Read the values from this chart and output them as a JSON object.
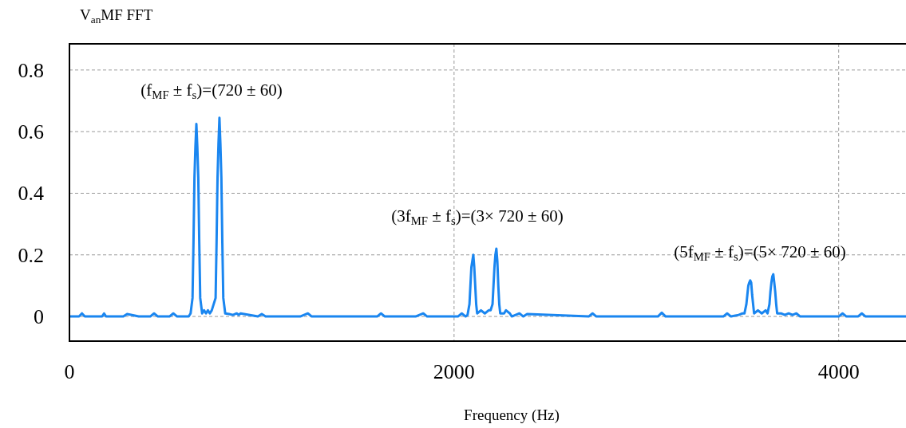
{
  "chart_data": {
    "type": "line",
    "title": "V$_{an}$MF FFT",
    "xlabel": "Frequency (Hz)",
    "annotations": [
      "(f$_{MF}$ ± f$_{s}$)=(720 ± 60)",
      "(3f$_{MF}$ ± f$_{s}$)=(3× 720 ± 60)",
      "(5f$_{MF}$ ± f$_{s}$)=(5× 720 ± 60)"
    ],
    "x": [
      0,
      50,
      65,
      80,
      170,
      180,
      190,
      280,
      300,
      360,
      420,
      440,
      460,
      520,
      540,
      560,
      620,
      630,
      640,
      645,
      650,
      655,
      660,
      665,
      670,
      675,
      680,
      690,
      700,
      710,
      720,
      730,
      740,
      760,
      765,
      770,
      775,
      780,
      785,
      790,
      795,
      800,
      810,
      830,
      850,
      870,
      880,
      890,
      980,
      1000,
      1020,
      1200,
      1240,
      1260,
      1400,
      1600,
      1620,
      1640,
      1800,
      1840,
      1860,
      2020,
      2040,
      2060,
      2070,
      2080,
      2085,
      2090,
      2095,
      2100,
      2105,
      2110,
      2115,
      2120,
      2140,
      2160,
      2180,
      2190,
      2200,
      2205,
      2210,
      2215,
      2220,
      2225,
      2230,
      2235,
      2240,
      2260,
      2270,
      2290,
      2300,
      2340,
      2360,
      2380,
      2700,
      2720,
      2740,
      3060,
      3080,
      3100,
      3400,
      3420,
      3440,
      3480,
      3500,
      3510,
      3520,
      3525,
      3530,
      3535,
      3540,
      3545,
      3550,
      3555,
      3560,
      3580,
      3600,
      3620,
      3630,
      3640,
      3645,
      3650,
      3655,
      3660,
      3665,
      3670,
      3675,
      3680,
      3700,
      3720,
      3740,
      3760,
      3780,
      3800,
      4000,
      4020,
      4040,
      4100,
      4120,
      4140,
      4300,
      4350
    ],
    "series": [
      {
        "color": "#1a86f0",
        "values": [
          0,
          0,
          0.01,
          0,
          0,
          0.01,
          0,
          0,
          0.008,
          0,
          0,
          0.01,
          0,
          0,
          0.01,
          0,
          0,
          0.01,
          0.06,
          0.24,
          0.45,
          0.55,
          0.625,
          0.55,
          0.45,
          0.24,
          0.06,
          0.01,
          0.02,
          0.01,
          0.02,
          0.01,
          0.02,
          0.06,
          0.24,
          0.45,
          0.56,
          0.645,
          0.56,
          0.45,
          0.24,
          0.06,
          0.01,
          0.008,
          0.005,
          0.01,
          0.005,
          0.01,
          0,
          0.008,
          0,
          0,
          0.01,
          0,
          0,
          0,
          0.01,
          0,
          0,
          0.01,
          0,
          0,
          0.01,
          0,
          0.005,
          0.04,
          0.1,
          0.16,
          0.18,
          0.2,
          0.16,
          0.1,
          0.04,
          0.01,
          0.02,
          0.01,
          0.02,
          0.02,
          0.04,
          0.1,
          0.16,
          0.2,
          0.22,
          0.18,
          0.1,
          0.04,
          0.01,
          0.01,
          0.02,
          0.01,
          0,
          0.01,
          0,
          0.008,
          0,
          0.01,
          0,
          0,
          0.012,
          0,
          0,
          0.01,
          0,
          0.005,
          0.01,
          0.01,
          0.04,
          0.07,
          0.1,
          0.11,
          0.117,
          0.11,
          0.07,
          0.04,
          0.01,
          0.02,
          0.01,
          0.02,
          0.01,
          0.04,
          0.08,
          0.11,
          0.13,
          0.137,
          0.11,
          0.08,
          0.04,
          0.01,
          0.01,
          0.005,
          0.01,
          0.005,
          0.01,
          0,
          0,
          0.01,
          0,
          0,
          0.01,
          0,
          0,
          0
        ]
      }
    ],
    "xlim": [
      0,
      4350
    ],
    "ylim": [
      -0.08,
      0.885
    ],
    "xticks": [
      0,
      2000,
      4000
    ],
    "yticks": [
      0,
      0.2,
      0.4,
      0.6,
      0.8
    ],
    "grid": true
  }
}
